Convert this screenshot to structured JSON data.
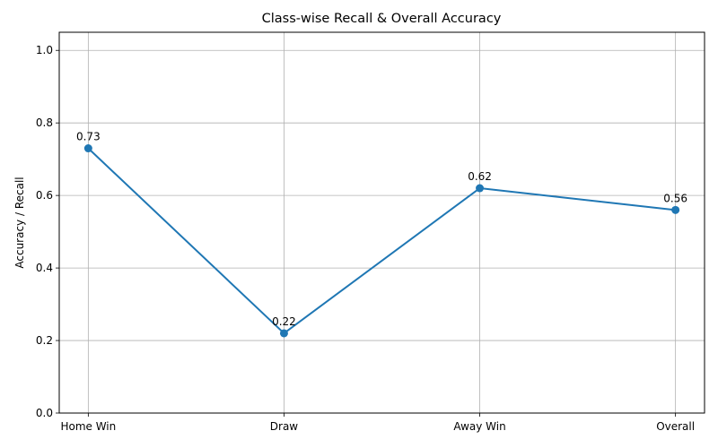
{
  "chart_data": {
    "type": "line",
    "title": "Class-wise Recall & Overall Accuracy",
    "xlabel": "",
    "ylabel": "Accuracy / Recall",
    "categories": [
      "Home Win",
      "Draw",
      "Away Win",
      "Overall"
    ],
    "series": [
      {
        "values": [
          0.73,
          0.22,
          0.62,
          0.56
        ],
        "color": "#1f77b4"
      }
    ],
    "data_labels": [
      "0.73",
      "0.22",
      "0.62",
      "0.56"
    ],
    "ylim": [
      0,
      1.05
    ],
    "yticks": [
      0.0,
      0.2,
      0.4,
      0.6,
      0.8,
      1.0
    ],
    "ytick_labels": [
      "0.0",
      "0.2",
      "0.4",
      "0.6",
      "0.8",
      "1.0"
    ],
    "grid": true,
    "legend": "none",
    "colors": {
      "line": "#1f77b4",
      "grid": "#b0b0b0",
      "axis": "#000000"
    }
  }
}
